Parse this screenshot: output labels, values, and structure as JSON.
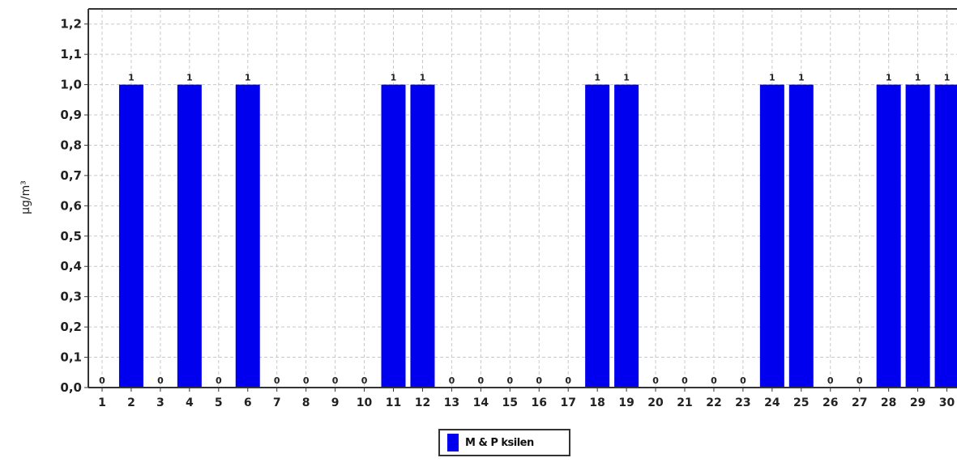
{
  "chart_data": {
    "type": "bar",
    "ylabel": "µg/m³",
    "ylim": [
      0,
      1.25
    ],
    "yticks": [
      "0,0",
      "0,1",
      "0,2",
      "0,3",
      "0,4",
      "0,5",
      "0,6",
      "0,7",
      "0,8",
      "0,9",
      "1,0",
      "1,1",
      "1,2"
    ],
    "grid": true,
    "categories": [
      "1",
      "2",
      "3",
      "4",
      "5",
      "6",
      "7",
      "8",
      "9",
      "10",
      "11",
      "12",
      "13",
      "14",
      "15",
      "16",
      "17",
      "18",
      "19",
      "20",
      "21",
      "22",
      "23",
      "24",
      "25",
      "26",
      "27",
      "28",
      "29",
      "30"
    ],
    "series": [
      {
        "name": "M & P ksilen",
        "color": "#0000ee",
        "values": [
          0,
          1,
          0,
          1,
          0,
          1,
          0,
          0,
          0,
          0,
          1,
          1,
          0,
          0,
          0,
          0,
          0,
          1,
          1,
          0,
          0,
          0,
          0,
          1,
          1,
          0,
          0,
          1,
          1,
          1
        ]
      }
    ],
    "data_labels": [
      "0",
      "1",
      "0",
      "1",
      "0",
      "1",
      "0",
      "0",
      "0",
      "0",
      "1",
      "1",
      "0",
      "0",
      "0",
      "0",
      "0",
      "1",
      "1",
      "0",
      "0",
      "0",
      "0",
      "1",
      "1",
      "0",
      "0",
      "1",
      "1",
      "1"
    ],
    "legend": "bottom-center"
  }
}
